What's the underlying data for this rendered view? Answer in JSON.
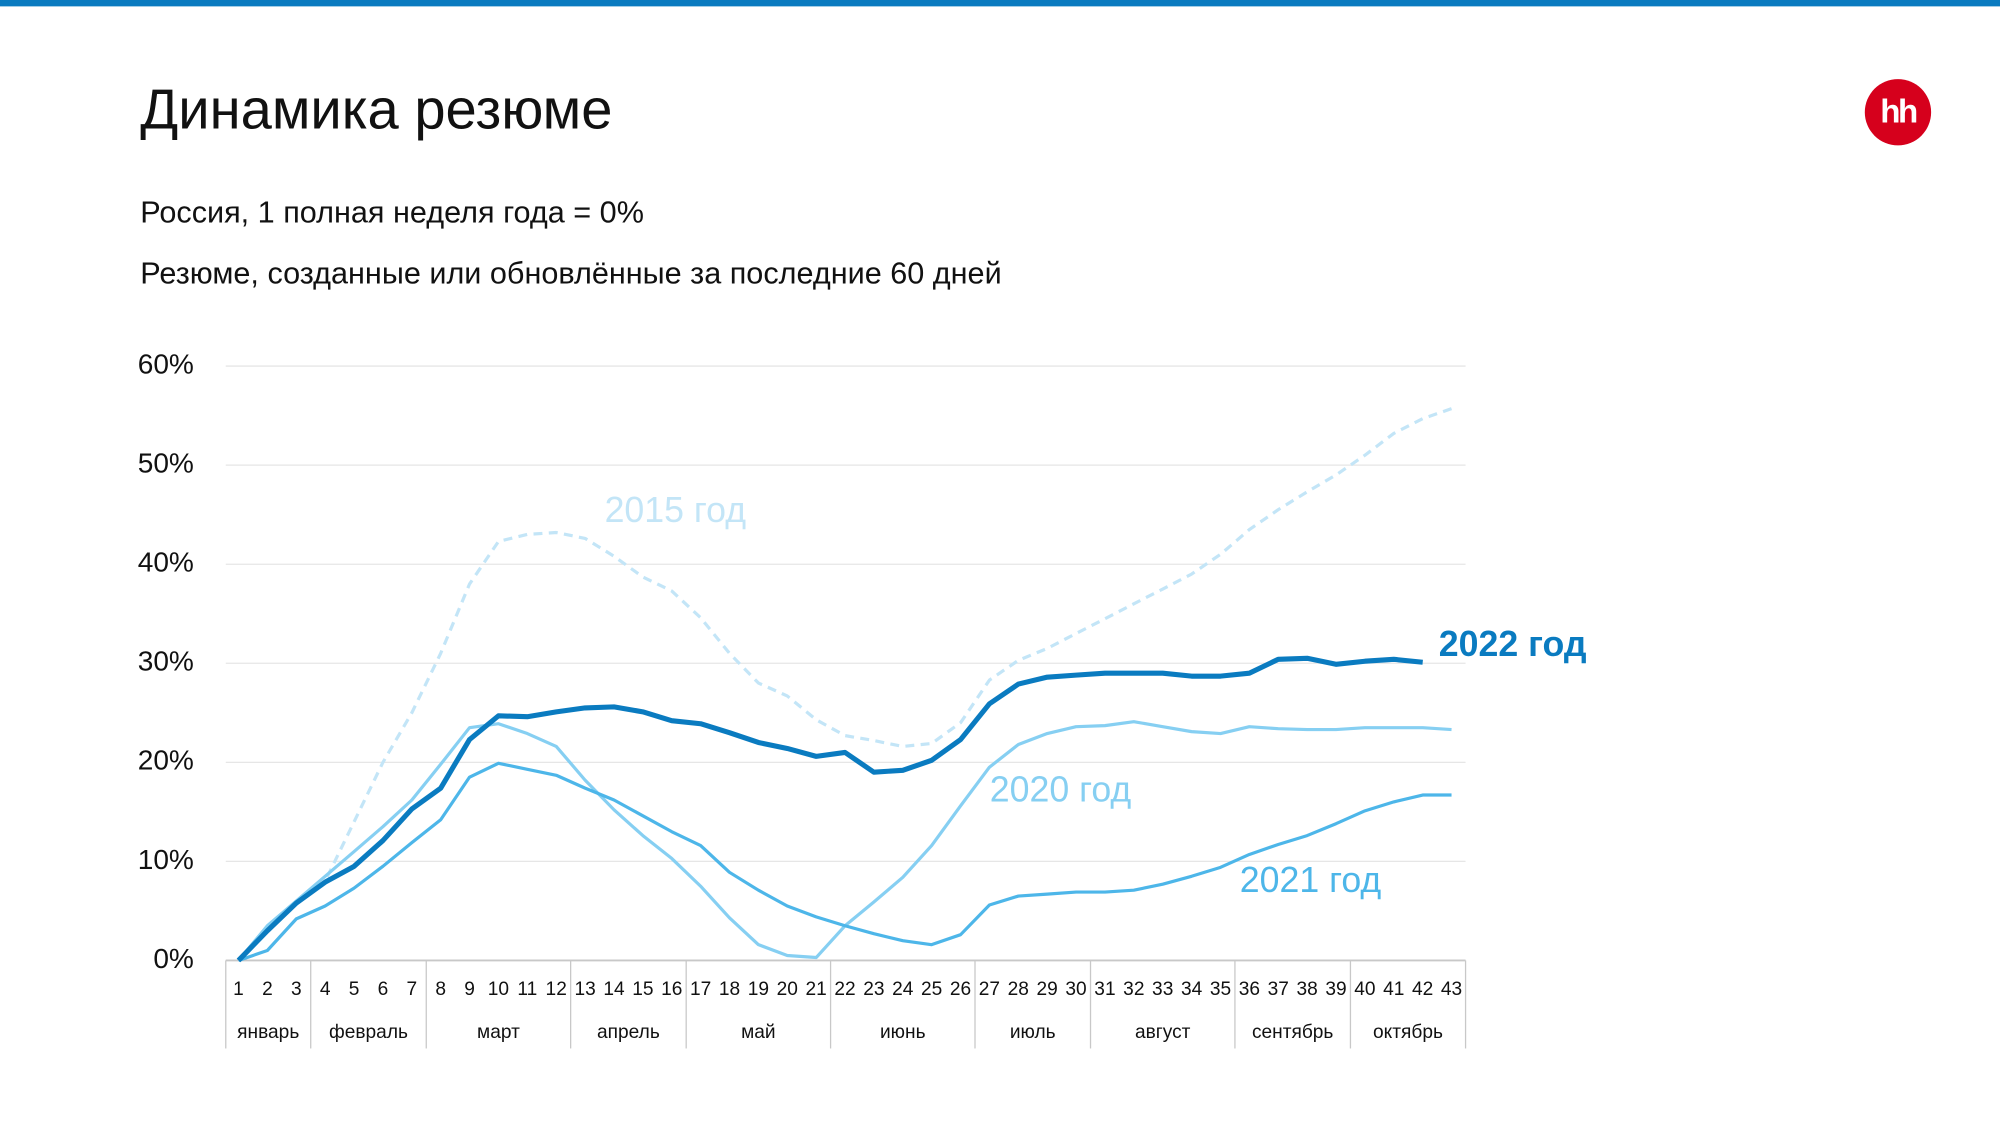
{
  "header": {
    "title": "Динамика резюме",
    "logo": "hh"
  },
  "chart_data": {
    "type": "line",
    "subtitle": "Россия, 1 полная неделя года = 0%",
    "subtitle2": "Резюме, созданные или обновлённые за последние 60 дней",
    "categories": [
      "1",
      "2",
      "3",
      "4",
      "5",
      "6",
      "7",
      "8",
      "9",
      "10",
      "11",
      "12",
      "13",
      "14",
      "15",
      "16",
      "17",
      "18",
      "19",
      "20",
      "21",
      "22",
      "23",
      "24",
      "25",
      "26",
      "27",
      "28",
      "29",
      "30",
      "31",
      "32",
      "33",
      "34",
      "35",
      "36",
      "37",
      "38",
      "39",
      "40",
      "41",
      "42",
      "43"
    ],
    "groups": [
      {
        "label": "январь",
        "count": 3
      },
      {
        "label": "февраль",
        "count": 4
      },
      {
        "label": "март",
        "count": 5
      },
      {
        "label": "апрель",
        "count": 4
      },
      {
        "label": "май",
        "count": 5
      },
      {
        "label": "июнь",
        "count": 5
      },
      {
        "label": "июль",
        "count": 4
      },
      {
        "label": "август",
        "count": 5
      },
      {
        "label": "сентябрь",
        "count": 4
      },
      {
        "label": "октябрь",
        "count": 4
      }
    ],
    "ylim": [
      0,
      60
    ],
    "yticks": [
      {
        "value": 0,
        "label": "0%"
      },
      {
        "value": 10,
        "label": "10%"
      },
      {
        "value": 20,
        "label": "20%"
      },
      {
        "value": 30,
        "label": "30%"
      },
      {
        "value": 40,
        "label": "40%"
      },
      {
        "value": 50,
        "label": "50%"
      },
      {
        "value": 60,
        "label": "60%"
      }
    ],
    "grid": true,
    "series": [
      {
        "name": "2015 год",
        "color": "#c3e5f7",
        "dashed": true,
        "values": [
          0,
          3,
          5.8,
          8,
          14,
          20,
          25,
          31,
          38,
          42.3,
          43,
          43.2,
          42.6,
          40.8,
          38.7,
          37.3,
          34.6,
          31,
          28,
          26.7,
          24.3,
          22.7,
          22.2,
          21.6,
          21.9,
          24,
          28.3,
          30.3,
          31.5,
          33,
          34.5,
          36,
          37.5,
          39,
          41,
          43.5,
          45.5,
          47.3,
          49,
          51,
          53.2,
          54.7,
          55.7
        ]
      },
      {
        "name": "2020 год",
        "color": "#86cff2",
        "values": [
          0,
          3.5,
          6,
          8.5,
          11,
          13.5,
          16.2,
          19.8,
          23.5,
          23.9,
          22.9,
          21.6,
          18.2,
          15.2,
          12.6,
          10.3,
          7.5,
          4.3,
          1.6,
          0.5,
          0.3,
          3.5,
          5.9,
          8.4,
          11.6,
          15.6,
          19.5,
          21.8,
          22.9,
          23.6,
          23.7,
          24.1,
          23.6,
          23.1,
          22.9,
          23.6,
          23.4,
          23.3,
          23.3,
          23.5,
          23.5,
          23.5,
          23.3
        ]
      },
      {
        "name": "2021 год",
        "color": "#4db6e9",
        "values": [
          0,
          1,
          4.2,
          5.5,
          7.3,
          9.5,
          11.9,
          14.2,
          18.5,
          19.9,
          19.3,
          18.7,
          17.4,
          16.2,
          14.6,
          13,
          11.6,
          8.9,
          7.1,
          5.5,
          4.4,
          3.5,
          2.7,
          2,
          1.6,
          2.6,
          5.6,
          6.5,
          6.7,
          6.9,
          6.9,
          7.1,
          7.7,
          8.5,
          9.4,
          10.7,
          11.7,
          12.6,
          13.8,
          15.1,
          16,
          16.7,
          16.7
        ]
      },
      {
        "name": "2022 год",
        "color": "#0a7bc0",
        "bold": true,
        "values": [
          0,
          3,
          5.8,
          7.9,
          9.5,
          12.1,
          15.3,
          17.4,
          22.3,
          24.7,
          24.6,
          25.1,
          25.5,
          25.6,
          25.1,
          24.2,
          23.9,
          23,
          22,
          21.4,
          20.6,
          21,
          19,
          19.2,
          20.2,
          22.3,
          25.9,
          27.9,
          28.6,
          28.8,
          29,
          29,
          29,
          28.7,
          28.7,
          29,
          30.4,
          30.5,
          29.9,
          30.2,
          30.4,
          30.1,
          null
        ]
      }
    ]
  }
}
